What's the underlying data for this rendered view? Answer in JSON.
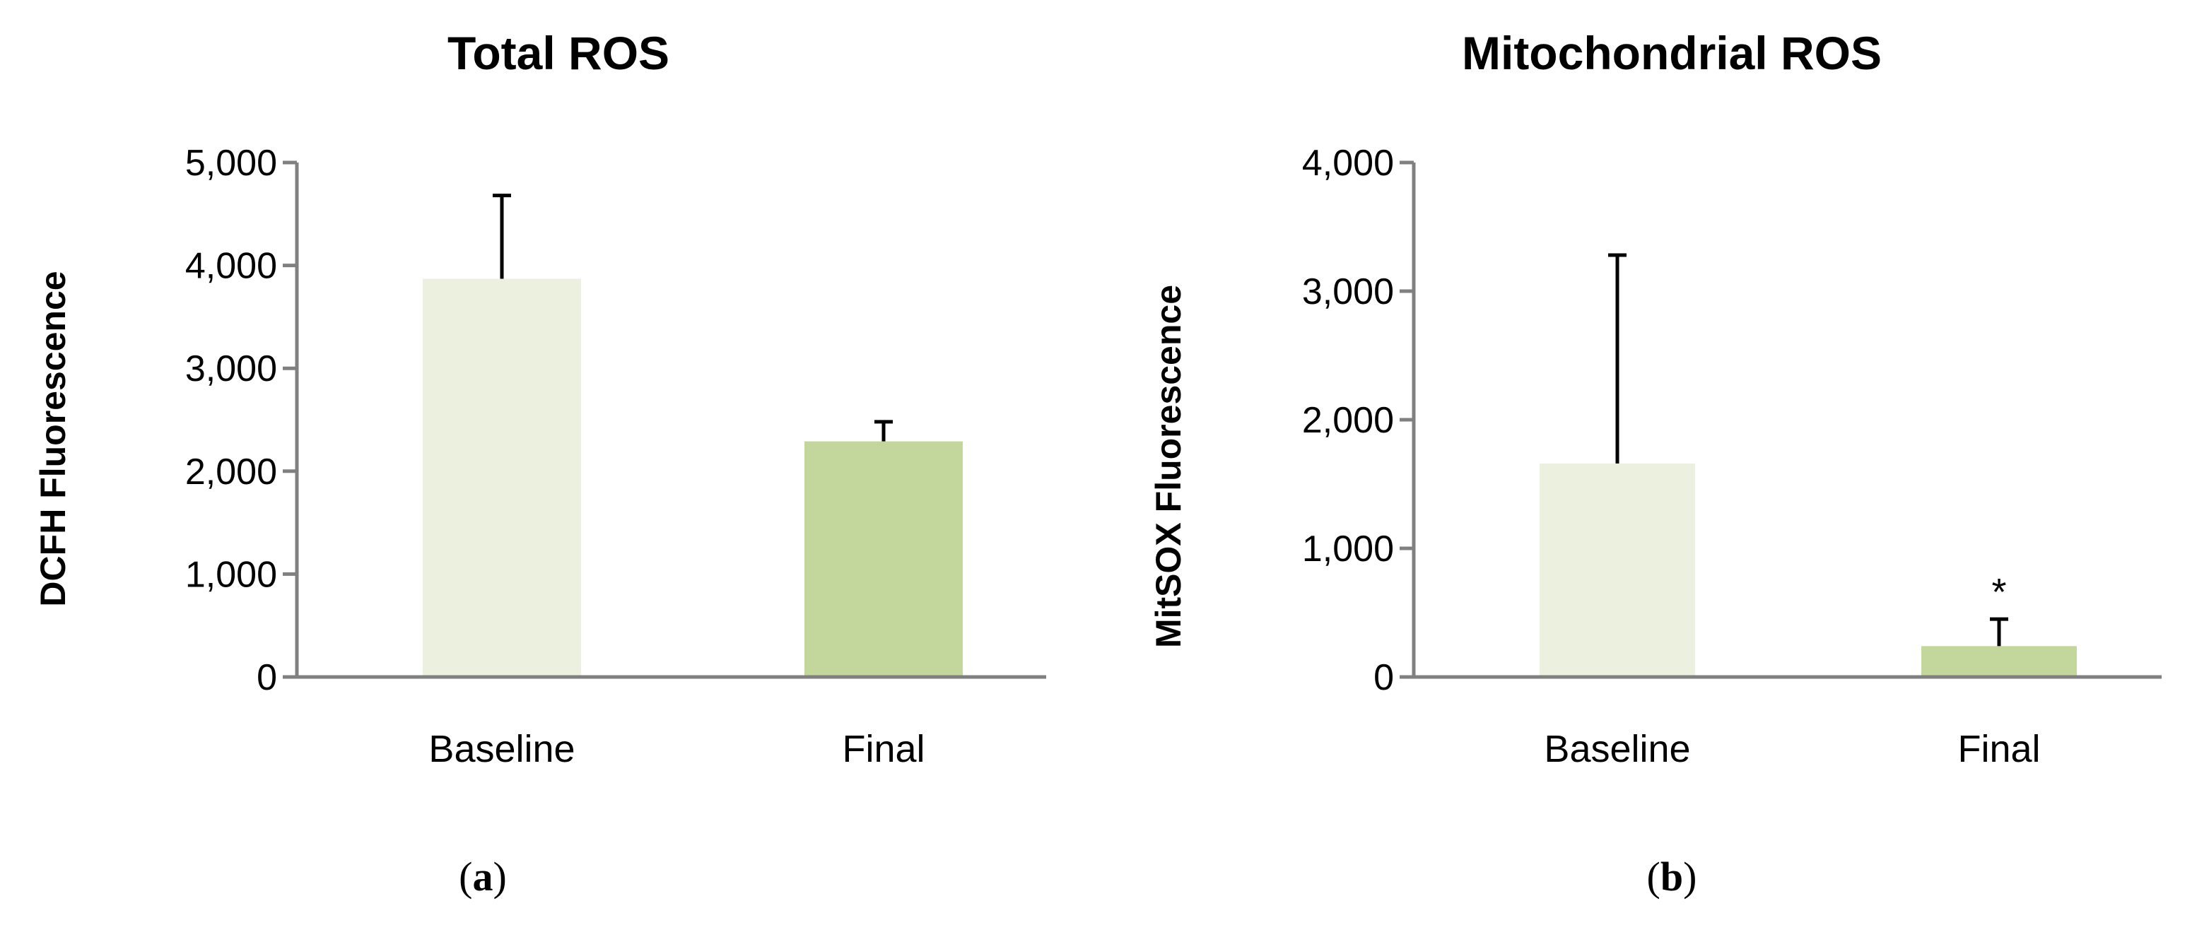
{
  "colors": {
    "baseline": "#ebf1de",
    "final": "#c3d69b",
    "axis": "#808080",
    "error": "#000000"
  },
  "chart_data": [
    {
      "type": "bar",
      "title": "Total ROS",
      "xlabel": "",
      "ylabel": "DCFH Fluorescence",
      "ylim": [
        0,
        5000
      ],
      "yticks": [
        0,
        1000,
        2000,
        3000,
        4000,
        5000
      ],
      "ytick_labels": [
        "0",
        "1,000",
        "2,000",
        "3,000",
        "4,000",
        "5,000"
      ],
      "categories": [
        "Baseline",
        "Final"
      ],
      "values": [
        3870,
        2290
      ],
      "errors": [
        810,
        190
      ],
      "annotations": [
        "",
        ""
      ],
      "panel_label": {
        "open": "(",
        "letter": "a",
        "close": ")"
      },
      "grid": false,
      "legend": "none"
    },
    {
      "type": "bar",
      "title": "Mitochondrial ROS",
      "xlabel": "",
      "ylabel": "MitSOX Fluorescence",
      "ylim": [
        0,
        4000
      ],
      "yticks": [
        0,
        1000,
        2000,
        3000,
        4000
      ],
      "ytick_labels": [
        "0",
        "1,000",
        "2,000",
        "3,000",
        "4,000"
      ],
      "categories": [
        "Baseline",
        "Final"
      ],
      "values": [
        1660,
        240
      ],
      "errors": [
        1620,
        210
      ],
      "annotations": [
        "",
        "*"
      ],
      "panel_label": {
        "open": "(",
        "letter": "b",
        "close": ")"
      },
      "grid": false,
      "legend": "none"
    }
  ]
}
